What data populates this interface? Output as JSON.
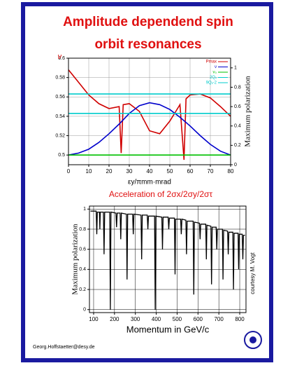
{
  "title_lines": [
    "Amplitude dependend spin",
    "orbit resonances"
  ],
  "footer": "Georg.Hoffstaetter@desy.de",
  "chart_data": [
    {
      "type": "line",
      "xlabel": "εy/πmm·mrad",
      "ylabel": "ν",
      "y2label": "Maximum polarization",
      "xlim": [
        0,
        80
      ],
      "xticks": [
        0,
        10,
        20,
        30,
        40,
        50,
        60,
        70,
        80
      ],
      "ylim": [
        0.49,
        0.6
      ],
      "yticks": [
        0.5,
        0.52,
        0.54,
        0.56,
        0.58,
        0.6
      ],
      "y2lim": [
        0,
        1.1
      ],
      "y2ticks": [
        0,
        0.2,
        0.4,
        0.6,
        0.8,
        1
      ],
      "grid": true,
      "legend": "upper right",
      "series": [
        {
          "name": "Pmax",
          "color": "#d00000",
          "axis": "y2",
          "x": [
            0,
            5,
            10,
            15,
            20,
            25,
            26,
            27,
            30,
            35,
            40,
            45,
            50,
            55,
            57,
            58,
            60,
            65,
            70,
            75,
            80
          ],
          "values": [
            0.98,
            0.85,
            0.72,
            0.63,
            0.58,
            0.6,
            0.12,
            0.62,
            0.63,
            0.55,
            0.35,
            0.32,
            0.45,
            0.62,
            0.05,
            0.68,
            0.72,
            0.73,
            0.69,
            0.6,
            0.5
          ]
        },
        {
          "name": "ν",
          "color": "#0000cc",
          "x": [
            0,
            5,
            10,
            15,
            20,
            25,
            30,
            35,
            40,
            45,
            50,
            55,
            60,
            65,
            70,
            75,
            80
          ],
          "values": [
            0.5,
            0.502,
            0.506,
            0.513,
            0.522,
            0.532,
            0.543,
            0.551,
            0.554,
            0.552,
            0.547,
            0.539,
            0.53,
            0.52,
            0.511,
            0.504,
            0.5
          ]
        },
        {
          "name": "ν₀",
          "color": "#00c000",
          "x": [
            0,
            80
          ],
          "values": [
            0.5,
            0.5
          ]
        },
        {
          "name": "2Qₓ",
          "color": "#00cccc",
          "x": [
            0,
            80
          ],
          "values": [
            0.543,
            0.543
          ]
        },
        {
          "name": "9Qₓ-2",
          "color": "#00cccc",
          "x": [
            0,
            80
          ],
          "values": [
            0.563,
            0.563
          ]
        }
      ]
    },
    {
      "type": "line",
      "title": "Acceleration of 2σx/2σy/2στ",
      "xlabel": "Momentum in GeV/c",
      "ylabel": "Maximum polarization",
      "annotation": "courtesy M. Vogt",
      "xlim": [
        80,
        830
      ],
      "xticks": [
        100,
        200,
        300,
        400,
        500,
        600,
        700,
        800
      ],
      "ylim": [
        -0.03,
        1.03
      ],
      "yticks": [
        0,
        0.2,
        0.4,
        0.6,
        0.8,
        1
      ],
      "grid": true,
      "series": [
        {
          "color": "#000000",
          "x": [
            85,
            112,
            115,
            118,
            128,
            130,
            132,
            147,
            150,
            153,
            177,
            180,
            183,
            207,
            210,
            213,
            227,
            230,
            233,
            257,
            260,
            263,
            287,
            290,
            293,
            327,
            330,
            333,
            357,
            360,
            363,
            392,
            395,
            398,
            427,
            430,
            433,
            457,
            460,
            463,
            487,
            490,
            493,
            517,
            520,
            523,
            542,
            545,
            548,
            577,
            580,
            583,
            607,
            610,
            613,
            637,
            640,
            643,
            662,
            665,
            668,
            687,
            690,
            693,
            717,
            720,
            723,
            742,
            745,
            748,
            767,
            770,
            773,
            792,
            795,
            798,
            812,
            815,
            818,
            825
          ],
          "values": [
            0.98,
            0.98,
            0.75,
            0.97,
            0.97,
            0.8,
            0.97,
            0.97,
            0.55,
            0.97,
            0.97,
            0,
            0.97,
            0.96,
            0.82,
            0.96,
            0.96,
            0.7,
            0.96,
            0.95,
            0.3,
            0.95,
            0.95,
            0.75,
            0.95,
            0.94,
            0.5,
            0.94,
            0.94,
            0.8,
            0.93,
            0.93,
            0,
            0.93,
            0.92,
            0.6,
            0.92,
            0.92,
            0.8,
            0.91,
            0.91,
            0.35,
            0.9,
            0.9,
            0.75,
            0.9,
            0.89,
            0.55,
            0.88,
            0.88,
            0.15,
            0.87,
            0.86,
            0.7,
            0.85,
            0.85,
            0.5,
            0.84,
            0.83,
            0.25,
            0.82,
            0.82,
            0.6,
            0.8,
            0.8,
            0.3,
            0.79,
            0.78,
            0.55,
            0.77,
            0.77,
            0.2,
            0.76,
            0.76,
            0.4,
            0.75,
            0.75,
            0.5,
            0.74,
            0.74
          ]
        }
      ]
    }
  ]
}
